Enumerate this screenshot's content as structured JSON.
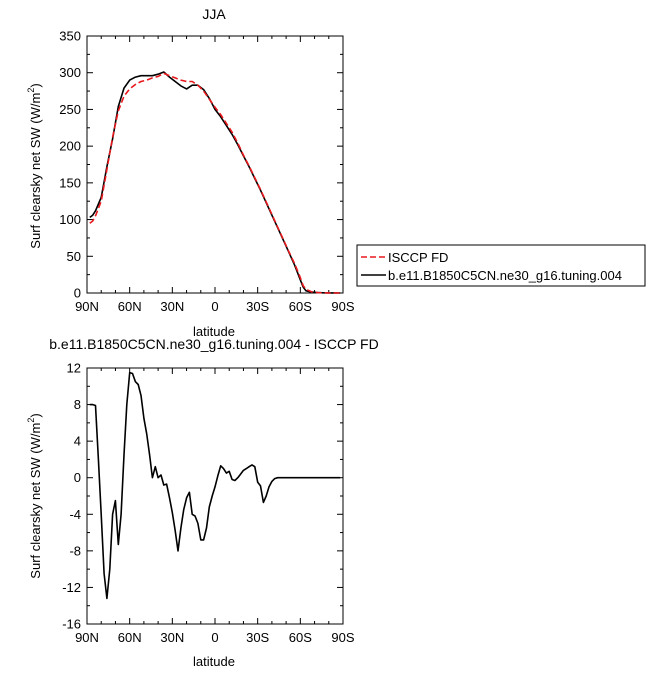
{
  "chart_data": [
    {
      "type": "line",
      "title": "JJA",
      "xlabel": "latitude",
      "ylabel": "Surf clearsky net SW (W/m²)",
      "ylabel_main": "Surf clearsky net SW (W/m",
      "ylabel_sup": "2",
      "ylabel_end": ")",
      "xlim": [
        90,
        -90
      ],
      "ylim": [
        0,
        350
      ],
      "x_ticks": [
        90,
        60,
        30,
        0,
        -30,
        -60,
        -90
      ],
      "x_tick_labels": [
        "90N",
        "60N",
        "30N",
        "0",
        "30S",
        "60S",
        "90S"
      ],
      "y_ticks": [
        0,
        50,
        100,
        150,
        200,
        250,
        300,
        350
      ],
      "y_tick_labels": [
        "0",
        "50",
        "100",
        "150",
        "200",
        "250",
        "300",
        "350"
      ],
      "legend_position": "right",
      "series": [
        {
          "name": "ISCCP FD",
          "color": "#e8191e",
          "dash": true,
          "x": [
            88,
            86,
            84,
            80,
            76,
            72,
            68,
            64,
            60,
            56,
            52,
            48,
            44,
            40,
            36,
            32,
            28,
            24,
            20,
            16,
            12,
            8,
            4,
            0,
            -4,
            -8,
            -12,
            -16,
            -20,
            -24,
            -28,
            -32,
            -36,
            -40,
            -44,
            -48,
            -52,
            -56,
            -60,
            -62,
            -64,
            -68,
            -72,
            -76,
            -80,
            -84,
            -88
          ],
          "y": [
            95,
            98,
            105,
            125,
            168,
            212,
            248,
            268,
            278,
            284,
            288,
            290,
            293,
            295,
            299,
            296,
            293,
            290,
            288,
            288,
            283,
            275,
            264,
            253,
            243,
            231,
            219,
            204,
            188,
            173,
            157,
            141,
            124,
            107,
            90,
            73,
            56,
            40,
            21,
            10,
            5,
            1.5,
            0.5,
            0.3,
            0.2,
            0.1,
            0
          ]
        },
        {
          "name": "b.e11.B1850C5CN.ne30_g16.tuning.004",
          "color": "#000000",
          "dash": false,
          "x": [
            88,
            86,
            84,
            80,
            76,
            72,
            68,
            64,
            60,
            56,
            52,
            48,
            44,
            40,
            36,
            32,
            28,
            24,
            20,
            16,
            12,
            8,
            4,
            0,
            -4,
            -8,
            -12,
            -16,
            -20,
            -24,
            -28,
            -32,
            -36,
            -40,
            -44,
            -48,
            -52,
            -56,
            -60,
            -62,
            -64,
            -68,
            -72,
            -76,
            -80,
            -84,
            -88
          ],
          "y": [
            103,
            106,
            112,
            130,
            172,
            210,
            254,
            279,
            290,
            294,
            296,
            296,
            296,
            298,
            301,
            294,
            288,
            282,
            278,
            283,
            283,
            277,
            265,
            250,
            240,
            228,
            216,
            202,
            187,
            172,
            156,
            140,
            123,
            106,
            89,
            72,
            55,
            38,
            18,
            8,
            3,
            1.2,
            0.5,
            0.3,
            0.2,
            0.1,
            0
          ]
        }
      ]
    },
    {
      "type": "line",
      "title": "b.e11.B1850C5CN.ne30_g16.tuning.004 - ISCCP FD",
      "xlabel": "latitude",
      "ylabel": "Surf clearsky net SW (W/m²)",
      "ylabel_main": "Surf clearsky net SW (W/m",
      "ylabel_sup": "2",
      "ylabel_end": ")",
      "xlim": [
        90,
        -90
      ],
      "ylim": [
        -16,
        12
      ],
      "x_ticks": [
        90,
        60,
        30,
        0,
        -30,
        -60,
        -90
      ],
      "x_tick_labels": [
        "90N",
        "60N",
        "30N",
        "0",
        "30S",
        "60S",
        "90S"
      ],
      "y_ticks": [
        -16,
        -12,
        -8,
        -4,
        0,
        4,
        8,
        12
      ],
      "y_tick_labels": [
        "-16",
        "-12",
        "-8",
        "-4",
        "0",
        "4",
        "8",
        "12"
      ],
      "series": [
        {
          "color": "#000000",
          "x": [
            88,
            86,
            84,
            82,
            80,
            78,
            76,
            74,
            72,
            70,
            68,
            66,
            64,
            62,
            60,
            58,
            56,
            54,
            52,
            50,
            48,
            46,
            44,
            42,
            40,
            38,
            36,
            34,
            32,
            30,
            28,
            26,
            24,
            22,
            20,
            18,
            16,
            14,
            12,
            10,
            8,
            6,
            4,
            2,
            0,
            -2,
            -4,
            -6,
            -8,
            -10,
            -12,
            -14,
            -16,
            -18,
            -20,
            -22,
            -24,
            -26,
            -28,
            -30,
            -32,
            -34,
            -36,
            -38,
            -40,
            -42,
            -44,
            -46,
            -48,
            -50,
            -52,
            -54,
            -56,
            -58,
            -60,
            -62,
            -64,
            -66,
            -68,
            -70,
            -72,
            -74,
            -76,
            -78,
            -80,
            -82,
            -84,
            -86,
            -88
          ],
          "y": [
            8,
            8,
            7.9,
            2,
            -4,
            -10.5,
            -13.2,
            -10,
            -4,
            -2.5,
            -7.3,
            -4,
            2.5,
            8,
            11.5,
            11.4,
            10.5,
            10.2,
            9,
            6.5,
            4.8,
            2.5,
            0,
            1.2,
            0,
            0.3,
            -0.8,
            -0.7,
            -2.2,
            -3.8,
            -5.8,
            -8,
            -5.5,
            -3.5,
            -2.2,
            -1.6,
            -4,
            -4.2,
            -5,
            -6.8,
            -6.8,
            -5.5,
            -3.2,
            -2,
            -1,
            0.2,
            1.3,
            1,
            0.5,
            0.7,
            -0.2,
            -0.3,
            0,
            0.4,
            0.8,
            1,
            1.2,
            1.4,
            1.2,
            -0.5,
            -0.9,
            -2.7,
            -2,
            -1,
            -0.4,
            -0.1,
            0,
            0,
            0,
            0,
            0,
            0,
            0,
            0,
            0,
            0,
            0,
            0,
            0,
            0,
            0,
            0,
            0,
            0,
            0,
            0,
            0,
            0,
            0
          ]
        }
      ]
    }
  ]
}
